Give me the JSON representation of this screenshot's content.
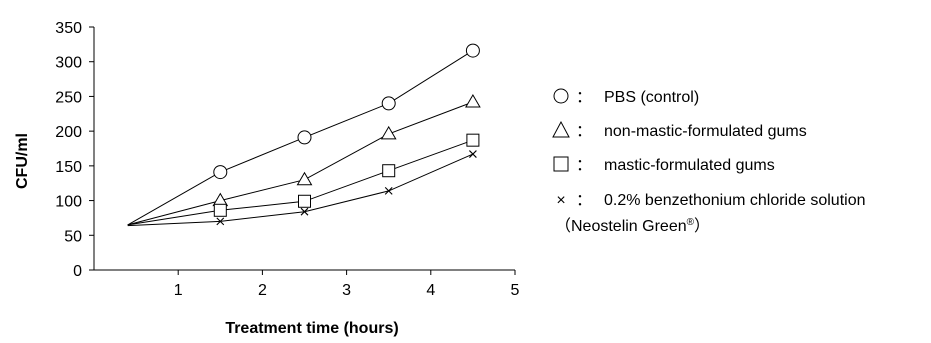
{
  "chart_data": {
    "type": "line",
    "title": "",
    "xlabel": "Treatment time (hours)",
    "ylabel": "CFU/ml",
    "xlim": [
      0,
      5
    ],
    "ylim": [
      0,
      350
    ],
    "x_ticks": [
      "1",
      "2",
      "3",
      "4",
      "5"
    ],
    "y_ticks": [
      "0",
      "50",
      "100",
      "150",
      "200",
      "250",
      "300",
      "350"
    ],
    "grid": false,
    "legend_position": "right",
    "series": [
      {
        "name": "PBS (control)",
        "marker": "circle",
        "x": [
          0.4,
          1.5,
          2.5,
          3.5,
          4.5
        ],
        "y": [
          65,
          141,
          191,
          240,
          316
        ]
      },
      {
        "name": "non-mastic-formulated gums",
        "marker": "triangle",
        "x": [
          0.4,
          1.5,
          2.5,
          3.5,
          4.5
        ],
        "y": [
          65,
          100,
          130,
          196,
          242
        ]
      },
      {
        "name": "mastic-formulated gums",
        "marker": "square",
        "x": [
          0.4,
          1.5,
          2.5,
          3.5,
          4.5
        ],
        "y": [
          65,
          86,
          99,
          143,
          187
        ]
      },
      {
        "name": "0.2% benzethonium chloride solution",
        "marker": "x",
        "x": [
          0.4,
          1.5,
          2.5,
          3.5,
          4.5
        ],
        "y": [
          64,
          70,
          84,
          114,
          167
        ]
      }
    ],
    "legend": [
      {
        "symbol": "○",
        "separator": "：",
        "label": "PBS (control)"
      },
      {
        "symbol": "△",
        "separator": "：",
        "label": "non-mastic-formulated gums"
      },
      {
        "symbol": "□",
        "separator": "：",
        "label": "mastic-formulated gums"
      },
      {
        "symbol": "×",
        "separator": "：",
        "label": "0.2% benzethonium chloride solution",
        "extra_line_prefix": "（Neostelin Green",
        "extra_line_sup": "®",
        "extra_line_suffix": "）"
      }
    ]
  }
}
